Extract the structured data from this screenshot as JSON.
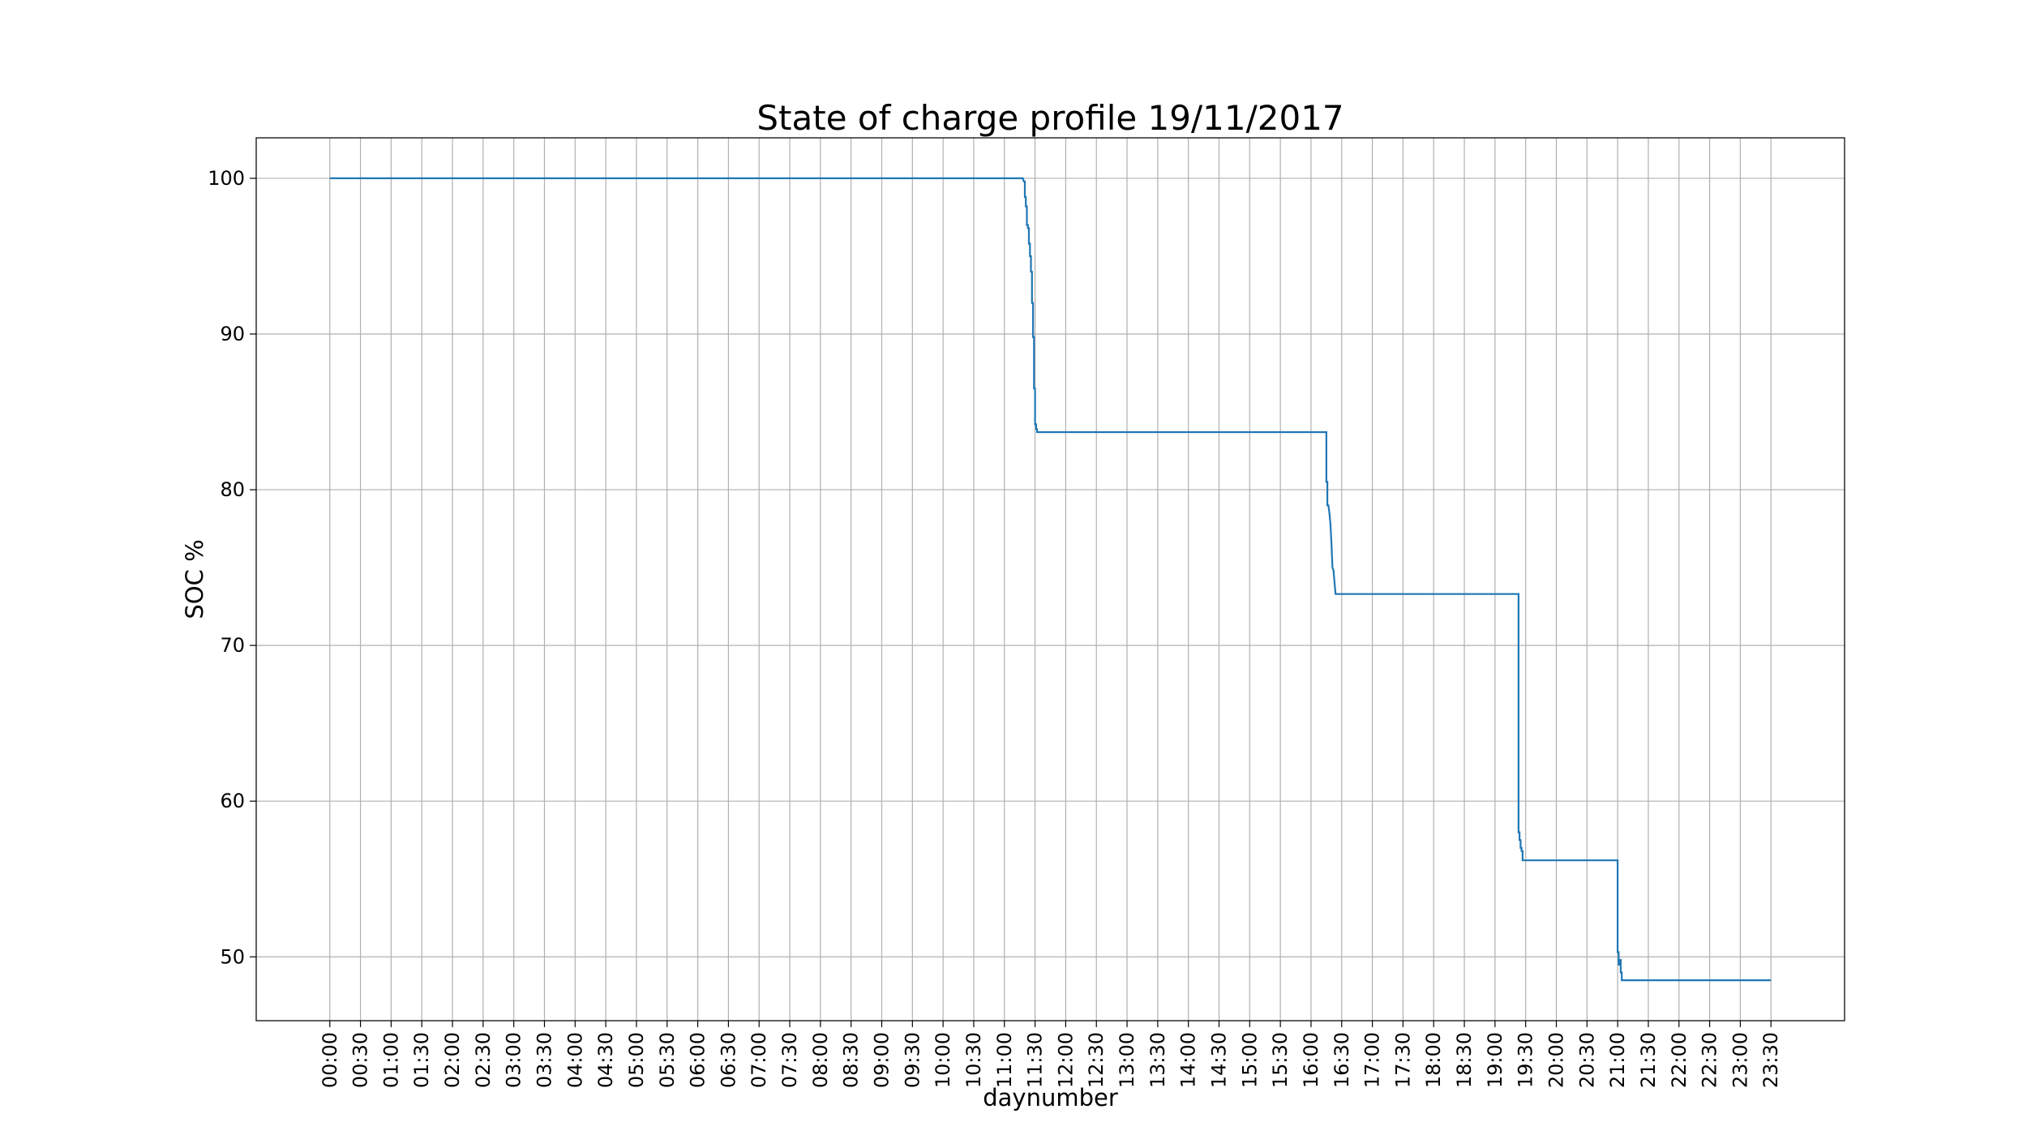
{
  "chart_data": {
    "type": "line",
    "title": "State of charge profile 19/11/2017",
    "xlabel": "daynumber",
    "ylabel": "SOC %",
    "grid": true,
    "legend": "none",
    "line_color": "#1f77b4",
    "x_ticks": [
      "00:00",
      "00:30",
      "01:00",
      "01:30",
      "02:00",
      "02:30",
      "03:00",
      "03:30",
      "04:00",
      "04:30",
      "05:00",
      "05:30",
      "06:00",
      "06:30",
      "07:00",
      "07:30",
      "08:00",
      "08:30",
      "09:00",
      "09:30",
      "10:00",
      "10:30",
      "11:00",
      "11:30",
      "12:00",
      "12:30",
      "13:00",
      "13:30",
      "14:00",
      "14:30",
      "15:00",
      "15:30",
      "16:00",
      "16:30",
      "17:00",
      "17:30",
      "18:00",
      "18:30",
      "19:00",
      "19:30",
      "20:00",
      "20:30",
      "21:00",
      "21:30",
      "22:00",
      "22:30",
      "23:00",
      "23:30"
    ],
    "y_ticks": [
      50,
      60,
      70,
      80,
      90,
      100
    ],
    "xlim": [
      "-01:12",
      "24:42"
    ],
    "ylim": [
      45.9,
      102.6
    ],
    "series": [
      {
        "x": [
          "00:00",
          "11:18",
          "11:19",
          "11:20",
          "11:20",
          "11:21",
          "11:21",
          "11:22",
          "11:22",
          "11:23",
          "11:23",
          "11:24",
          "11:24",
          "11:25",
          "11:25",
          "11:26",
          "11:26",
          "11:27",
          "11:27",
          "11:28",
          "11:28",
          "11:29",
          "11:29",
          "11:30",
          "11:30",
          "11:31",
          "11:31",
          "11:32",
          "11:32",
          "11:33",
          "11:33",
          "11:34",
          "11:34",
          "11:35",
          "11:35",
          "11:36",
          "11:36",
          "11:37",
          "11:37",
          "11:38",
          "11:38",
          "11:39",
          "11:39",
          "11:40",
          "16:15",
          "16:15",
          "16:16",
          "16:16",
          "16:17",
          "16:18",
          "16:18",
          "16:19",
          "16:19",
          "16:20",
          "16:20",
          "16:21",
          "16:21",
          "16:22",
          "16:22",
          "16:23",
          "16:23",
          "16:24",
          "16:24",
          "16:25",
          "16:25",
          "16:26",
          "16:26",
          "16:27",
          "16:27",
          "16:28",
          "16:28",
          "16:29",
          "16:29",
          "16:30",
          "19:23",
          "19:23",
          "19:24",
          "19:24",
          "19:25",
          "19:25",
          "19:26",
          "19:26",
          "19:27",
          "19:27",
          "19:28",
          "19:28",
          "19:29",
          "19:29",
          "19:30",
          "19:30",
          "19:31",
          "21:00",
          "21:00",
          "21:01",
          "21:01",
          "21:02",
          "21:02",
          "21:03",
          "21:03",
          "21:04",
          "21:04",
          "21:05",
          "21:05",
          "21:06",
          "23:30"
        ],
        "y": [
          100,
          100,
          99.8,
          99.8,
          98.8,
          98.8,
          98.2,
          98.2,
          97,
          97,
          96.8,
          96.8,
          95.8,
          95.8,
          95,
          95,
          94,
          94,
          92,
          92,
          89.8,
          89.8,
          86.5,
          86.5,
          84.2,
          84.2,
          83.9,
          83.9,
          83.7,
          83.7,
          83.7,
          83.7,
          83.7,
          83.7,
          83.7,
          83.7,
          83.7,
          83.7,
          83.7,
          83.7,
          83.7,
          83.7,
          83.7,
          83.7,
          83.7,
          80.5,
          80.5,
          79,
          79,
          78.5,
          78.5,
          77.8,
          77.8,
          76.5,
          76.5,
          75,
          75,
          74.8,
          74.8,
          74,
          74,
          73.3,
          73.3,
          73.3,
          73.3,
          73.3,
          73.3,
          73.3,
          73.3,
          73.3,
          73.3,
          73.3,
          73.3,
          73.3,
          73.3,
          58,
          58,
          57.5,
          57.5,
          57,
          57,
          56.8,
          56.8,
          56.2,
          56.2,
          56.2,
          56.2,
          56.2,
          56.2,
          56.2,
          56.2,
          56.2,
          50.3,
          50.3,
          49.5,
          49.5,
          49.8,
          49.8,
          49,
          49,
          48.5,
          48.5,
          48.5,
          48.5,
          48.5
        ]
      }
    ]
  }
}
